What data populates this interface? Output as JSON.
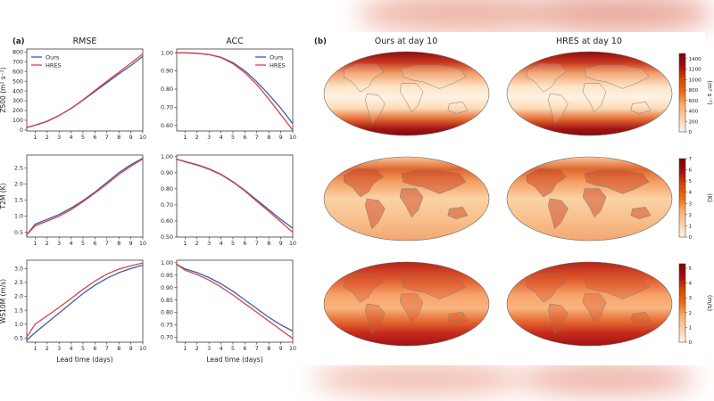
{
  "figure": {
    "panel_a_label": "(a)",
    "panel_b_label": "(b)",
    "col_rmse": "RMSE",
    "col_acc": "ACC",
    "col_ours_map": "Ours at day 10",
    "col_hres_map": "HRES at day 10",
    "xlabel": "Lead time (days)",
    "colorbar_units": [
      "(m² s⁻²)",
      "(K)",
      "(m/s)"
    ]
  },
  "colors": {
    "ours": "#3a5fa8",
    "hres": "#d8414a"
  },
  "chart_data": [
    {
      "type": "line",
      "id": "z500-rmse",
      "title": "RMSE",
      "ylabel": "Z500 (m² s⁻²)",
      "xlim": [
        0.3,
        10
      ],
      "ylim": [
        -10,
        830
      ],
      "xticks": [
        1,
        2,
        3,
        4,
        5,
        6,
        7,
        8,
        9,
        10
      ],
      "yticks": [
        0,
        100,
        200,
        300,
        400,
        500,
        600,
        700,
        800
      ],
      "legend": "top-left",
      "x": [
        0.25,
        1,
        2,
        3,
        4,
        5,
        6,
        7,
        8,
        9,
        10
      ],
      "series": [
        {
          "name": "Ours",
          "color": "#3a5fa8",
          "values": [
            25,
            50,
            90,
            150,
            220,
            305,
            395,
            485,
            575,
            660,
            755
          ]
        },
        {
          "name": "HRES",
          "color": "#d8414a",
          "values": [
            25,
            48,
            88,
            148,
            222,
            310,
            405,
            500,
            592,
            685,
            780
          ]
        }
      ]
    },
    {
      "type": "line",
      "id": "z500-acc",
      "title": "ACC",
      "ylabel": "",
      "xlim": [
        0.3,
        10
      ],
      "ylim": [
        0.57,
        1.02
      ],
      "xticks": [
        1,
        2,
        3,
        4,
        5,
        6,
        7,
        8,
        9,
        10
      ],
      "yticks": [
        0.6,
        0.7,
        0.8,
        0.9,
        1.0
      ],
      "legend": "right",
      "x": [
        0.25,
        1,
        2,
        3,
        4,
        5,
        6,
        7,
        8,
        9,
        10
      ],
      "series": [
        {
          "name": "Ours",
          "color": "#3a5fa8",
          "values": [
            1.0,
            0.999,
            0.997,
            0.99,
            0.975,
            0.945,
            0.9,
            0.84,
            0.77,
            0.695,
            0.61
          ]
        },
        {
          "name": "HRES",
          "color": "#d8414a",
          "values": [
            1.0,
            0.999,
            0.996,
            0.989,
            0.973,
            0.94,
            0.89,
            0.825,
            0.745,
            0.66,
            0.575
          ]
        }
      ]
    },
    {
      "type": "line",
      "id": "t2m-rmse",
      "ylabel": "T2M (K)",
      "xlim": [
        0.3,
        10
      ],
      "ylim": [
        0.35,
        2.9
      ],
      "xticks": [
        1,
        2,
        3,
        4,
        5,
        6,
        7,
        8,
        9,
        10
      ],
      "yticks": [
        0.5,
        1.0,
        1.5,
        2.0,
        2.5
      ],
      "x": [
        0.25,
        1,
        2,
        3,
        4,
        5,
        6,
        7,
        8,
        9,
        10
      ],
      "series": [
        {
          "name": "Ours",
          "color": "#3a5fa8",
          "values": [
            0.4,
            0.75,
            0.9,
            1.05,
            1.25,
            1.48,
            1.75,
            2.05,
            2.35,
            2.6,
            2.8
          ]
        },
        {
          "name": "HRES",
          "color": "#d8414a",
          "values": [
            0.4,
            0.7,
            0.85,
            1.0,
            1.2,
            1.45,
            1.72,
            2.0,
            2.3,
            2.55,
            2.78
          ]
        }
      ]
    },
    {
      "type": "line",
      "id": "t2m-acc",
      "ylabel": "",
      "xlim": [
        0.3,
        10
      ],
      "ylim": [
        0.5,
        1.01
      ],
      "xticks": [
        1,
        2,
        3,
        4,
        5,
        6,
        7,
        8,
        9,
        10
      ],
      "yticks": [
        0.5,
        0.6,
        0.7,
        0.8,
        0.9,
        1.0
      ],
      "x": [
        0.25,
        1,
        2,
        3,
        4,
        5,
        6,
        7,
        8,
        9,
        10
      ],
      "series": [
        {
          "name": "Ours",
          "color": "#3a5fa8",
          "values": [
            0.985,
            0.97,
            0.95,
            0.925,
            0.89,
            0.845,
            0.79,
            0.73,
            0.67,
            0.61,
            0.555
          ]
        },
        {
          "name": "HRES",
          "color": "#d8414a",
          "values": [
            0.985,
            0.968,
            0.948,
            0.922,
            0.888,
            0.842,
            0.786,
            0.722,
            0.66,
            0.595,
            0.53
          ]
        }
      ]
    },
    {
      "type": "line",
      "id": "ws10m-rmse",
      "ylabel": "WS10M (m/s)",
      "xlim": [
        0.3,
        10
      ],
      "ylim": [
        0.35,
        3.3
      ],
      "xticks": [
        1,
        2,
        3,
        4,
        5,
        6,
        7,
        8,
        9,
        10
      ],
      "yticks": [
        0.5,
        1.0,
        1.5,
        2.0,
        2.5,
        3.0
      ],
      "x": [
        0.25,
        1,
        2,
        3,
        4,
        5,
        6,
        7,
        8,
        9,
        10
      ],
      "series": [
        {
          "name": "Ours",
          "color": "#3a5fa8",
          "values": [
            0.4,
            0.7,
            1.05,
            1.4,
            1.75,
            2.1,
            2.4,
            2.65,
            2.85,
            3.0,
            3.12
          ]
        },
        {
          "name": "HRES",
          "color": "#d8414a",
          "values": [
            0.5,
            1.0,
            1.3,
            1.6,
            1.92,
            2.25,
            2.55,
            2.8,
            2.98,
            3.1,
            3.2
          ]
        }
      ]
    },
    {
      "type": "line",
      "id": "ws10m-acc",
      "ylabel": "",
      "xlim": [
        0.3,
        10
      ],
      "ylim": [
        0.68,
        1.01
      ],
      "xticks": [
        1,
        2,
        3,
        4,
        5,
        6,
        7,
        8,
        9,
        10
      ],
      "yticks": [
        0.7,
        0.75,
        0.8,
        0.85,
        0.9,
        0.95,
        1.0
      ],
      "x": [
        0.25,
        1,
        2,
        3,
        4,
        5,
        6,
        7,
        8,
        9,
        10
      ],
      "series": [
        {
          "name": "Ours",
          "color": "#3a5fa8",
          "values": [
            0.995,
            0.975,
            0.96,
            0.94,
            0.915,
            0.885,
            0.85,
            0.815,
            0.78,
            0.75,
            0.725
          ]
        },
        {
          "name": "HRES",
          "color": "#d8414a",
          "values": [
            0.995,
            0.97,
            0.952,
            0.93,
            0.902,
            0.87,
            0.835,
            0.8,
            0.765,
            0.73,
            0.695
          ]
        }
      ]
    },
    {
      "type": "heatmap",
      "id": "maps",
      "maps": [
        {
          "variable": "Z500",
          "colorbar_ticks": [
            0,
            200,
            400,
            600,
            800,
            1000,
            1200,
            1400
          ],
          "vmax": 1500
        },
        {
          "variable": "T2M",
          "colorbar_ticks": [
            0,
            1,
            2,
            3,
            4,
            5,
            6,
            7
          ],
          "vmax": 7
        },
        {
          "variable": "WS10M",
          "colorbar_ticks": [
            0,
            1,
            2,
            3,
            4,
            5
          ],
          "vmax": 5.3
        }
      ],
      "colormap": [
        "#fff5eb",
        "#fdd0a2",
        "#fdae6b",
        "#f16913",
        "#d94801",
        "#a50f15",
        "#7f0000"
      ]
    }
  ]
}
